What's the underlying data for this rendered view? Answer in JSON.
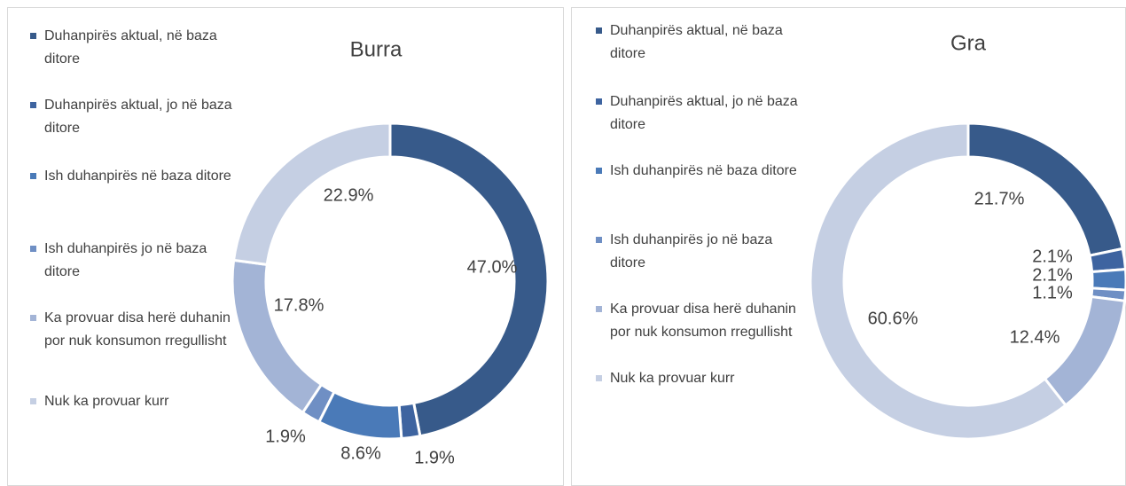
{
  "chart_data": [
    {
      "type": "donut",
      "title": "Burra",
      "categories": [
        "Duhanpirës aktual, në baza ditore",
        "Duhanpirës aktual, jo në baza ditore",
        "Ish duhanpirës në baza ditore",
        "Ish duhanpirës jo në baza ditore",
        "Ka provuar disa herë duhanin por nuk konsumon rregullisht",
        "Nuk ka provuar kurr"
      ],
      "values": [
        47.0,
        1.9,
        8.6,
        1.9,
        17.8,
        22.9
      ],
      "value_labels": [
        "47.0%",
        "1.9%",
        "8.6%",
        "1.9%",
        "17.8%",
        "22.9%"
      ],
      "colors": [
        "#375a8a",
        "#3e64a0",
        "#4a7ab8",
        "#6f8fc4",
        "#a3b4d6",
        "#c5cfe3"
      ],
      "legend": "left"
    },
    {
      "type": "donut",
      "title": "Gra",
      "categories": [
        "Duhanpirës aktual, në baza ditore",
        "Duhanpirës aktual, jo në baza ditore",
        "Ish duhanpirës në baza ditore",
        "Ish duhanpirës jo në baza ditore",
        "Ka provuar disa herë duhanin por nuk konsumon rregullisht",
        "Nuk ka provuar kurr"
      ],
      "values": [
        21.7,
        2.1,
        2.1,
        1.1,
        12.4,
        60.6
      ],
      "value_labels": [
        "21.7%",
        "2.1%",
        "2.1%",
        "1.1%",
        "12.4%",
        "60.6%"
      ],
      "colors": [
        "#375a8a",
        "#3e64a0",
        "#4a7ab8",
        "#6f8fc4",
        "#a3b4d6",
        "#c5cfe3"
      ],
      "legend": "left"
    }
  ]
}
